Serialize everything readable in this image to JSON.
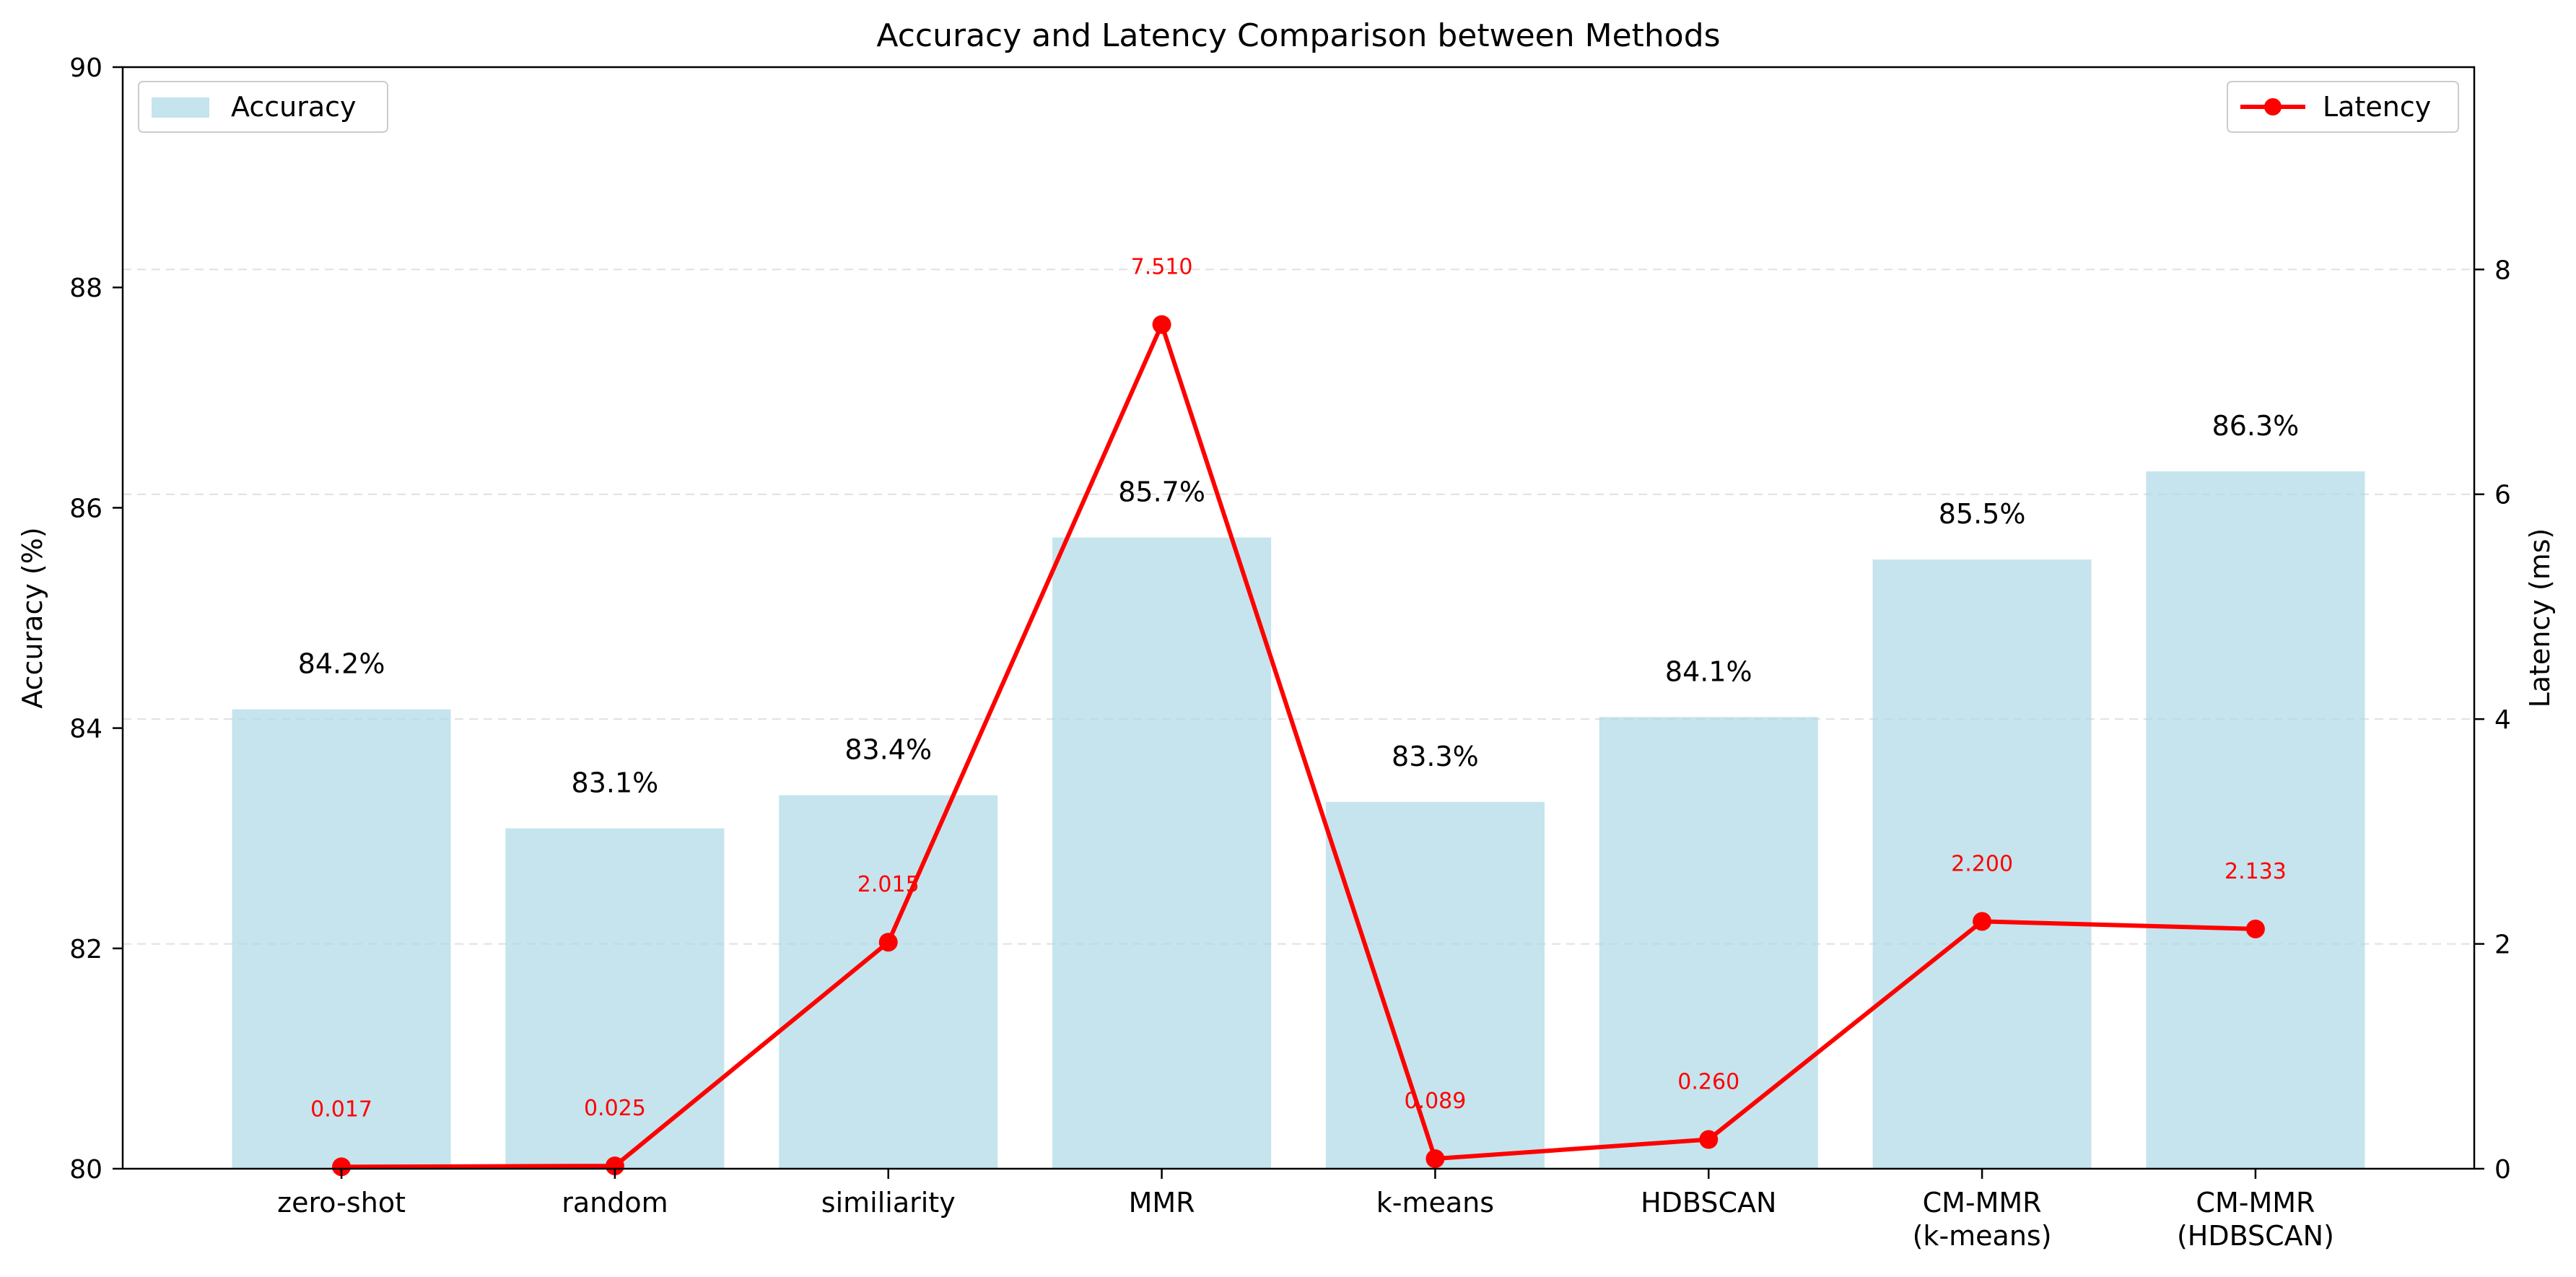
{
  "chart_data": {
    "type": "bar",
    "title": "Accuracy and Latency Comparison between Methods",
    "categories": [
      "zero-shot",
      "random",
      "similiarity",
      "MMR",
      "k-means",
      "HDBSCAN",
      "CM-MMR\n(k-means)",
      "CM-MMR\n(HDBSCAN)"
    ],
    "y_left": {
      "label": "Accuracy (%)",
      "lim": [
        80,
        90
      ],
      "ticks": [
        80,
        82,
        84,
        86,
        88,
        90
      ]
    },
    "y_right": {
      "label": "Latency (ms)",
      "lim": [
        0,
        9.8
      ],
      "ticks": [
        0,
        2,
        4,
        6,
        8
      ]
    },
    "grid": "horizontal-dashed",
    "series": [
      {
        "name": "Accuracy",
        "type": "bar",
        "axis": "left",
        "color": "#add8e6",
        "values": [
          84.17,
          83.09,
          83.39,
          85.73,
          83.33,
          84.1,
          85.53,
          86.33
        ],
        "labels": [
          "84.2%",
          "83.1%",
          "83.4%",
          "85.7%",
          "83.3%",
          "84.1%",
          "85.5%",
          "86.3%"
        ],
        "legend_position": "upper left"
      },
      {
        "name": "Latency",
        "type": "line",
        "axis": "right",
        "color": "#ff0000",
        "values": [
          0.017,
          0.025,
          2.015,
          7.51,
          0.089,
          0.26,
          2.2,
          2.133
        ],
        "labels": [
          "0.017",
          "0.025",
          "2.015",
          "7.510",
          "0.089",
          "0.260",
          "2.200",
          "2.133"
        ],
        "legend_position": "upper right"
      }
    ]
  }
}
